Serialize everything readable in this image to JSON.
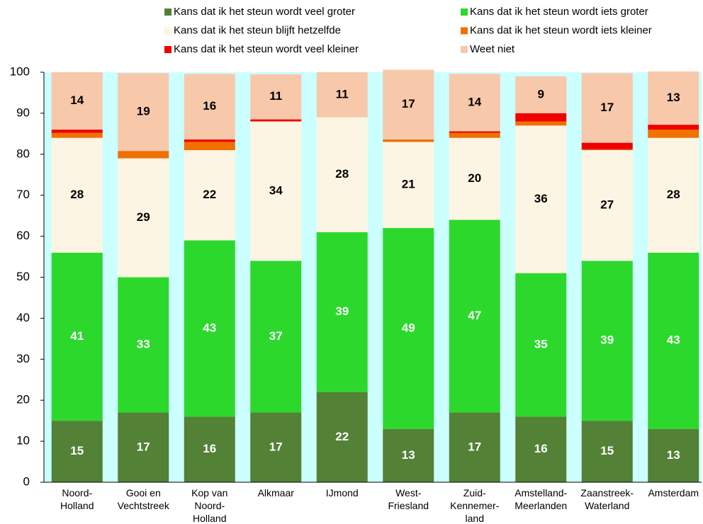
{
  "chart_data": {
    "type": "stacked_bar",
    "categories": [
      "Noord-\nHolland",
      "Gooi en\nVechtstreek",
      "Kop van\nNoord-\nHolland",
      "Alkmaar",
      "IJmond",
      "West-\nFriesland",
      "Zuid-\nKennemer-\nland",
      "Amstelland-\nMeerlanden",
      "Zaanstreek-\nWaterland",
      "Amsterdam"
    ],
    "series": [
      {
        "name": "Kans dat ik het steun wordt veel groter",
        "color": "#538135",
        "label_color": "#ffffff",
        "values": [
          15,
          17,
          16,
          17,
          22,
          13,
          17,
          16,
          15,
          13
        ]
      },
      {
        "name": "Kans dat ik het steun wordt iets groter",
        "color": "#2dd82d",
        "label_color": "#ffffff",
        "values": [
          41,
          33,
          43,
          37,
          39,
          49,
          47,
          35,
          39,
          43
        ]
      },
      {
        "name": "Kans dat ik het steun blijft hetzelfde",
        "color": "#fdf5e4",
        "label_color": "#000000",
        "values": [
          28,
          29,
          22,
          34,
          28,
          21,
          20,
          36,
          27,
          28
        ]
      },
      {
        "name": "Kans dat ik het steun wordt iets kleiner",
        "color": "#f07000",
        "label_color": "#000000",
        "values": [
          1.2,
          1.8,
          2,
          0,
          0,
          0.6,
          1.2,
          1,
          0.2,
          2
        ]
      },
      {
        "name": "Kans dat ik het steun wordt veel kleiner",
        "color": "#f00000",
        "label_color": "#000000",
        "values": [
          0.8,
          0,
          0.6,
          0.5,
          0,
          0,
          0.4,
          2,
          1.6,
          1.2
        ]
      },
      {
        "name": "Weet niet",
        "color": "#f7c8aa",
        "label_color": "#000000",
        "values": [
          14,
          19,
          16,
          11,
          11,
          17,
          14,
          9,
          17,
          13
        ]
      }
    ],
    "ylim": [
      0,
      100
    ],
    "yticks": [
      0,
      10,
      20,
      30,
      40,
      50,
      60,
      70,
      80,
      90,
      100
    ],
    "background": "#ccffff",
    "legend": "top"
  }
}
